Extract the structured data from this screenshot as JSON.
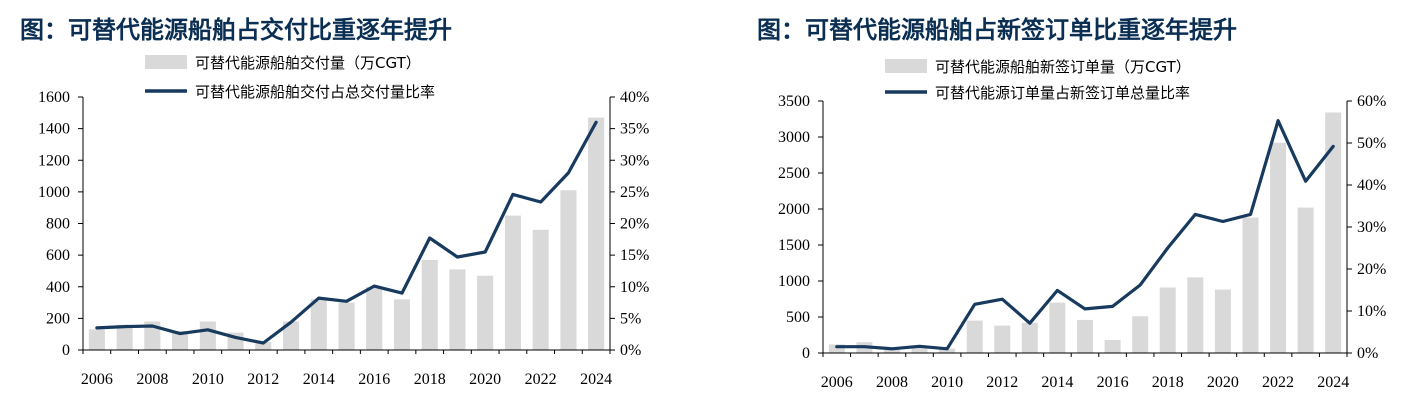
{
  "colors": {
    "bar": "#d9d9d9",
    "line": "#173a5e",
    "title": "#0b2f53"
  },
  "chart_data": [
    {
      "type": "bar+line",
      "title": "图：可替代能源船舶占交付比重逐年提升",
      "xlabel": "",
      "ylabel": "",
      "x": [
        2006,
        2007,
        2008,
        2009,
        2010,
        2011,
        2012,
        2013,
        2014,
        2015,
        2016,
        2017,
        2018,
        2019,
        2020,
        2021,
        2022,
        2023,
        2024
      ],
      "x_tick_labels": [
        "2006",
        "2008",
        "2010",
        "2012",
        "2014",
        "2016",
        "2018",
        "2020",
        "2022",
        "2024"
      ],
      "ylim": [
        0,
        1600
      ],
      "y_ticks": [
        0,
        200,
        400,
        600,
        800,
        1000,
        1200,
        1400,
        1600
      ],
      "y_tick_labels": [
        "0",
        "200",
        "400",
        "600",
        "800",
        "1000",
        "1200",
        "1400",
        "1600"
      ],
      "y2lim": [
        0,
        0.4
      ],
      "y2_ticks": [
        0,
        0.05,
        0.1,
        0.15,
        0.2,
        0.25,
        0.3,
        0.35,
        0.4
      ],
      "y2_tick_labels": [
        "0%",
        "5%",
        "10%",
        "15%",
        "20%",
        "25%",
        "30%",
        "35%",
        "40%"
      ],
      "grid": false,
      "legend_position": "top-center",
      "series": [
        {
          "name": "可替代能源船舶交付量（万CGT）",
          "type": "bar",
          "axis": "left",
          "values": [
            130,
            160,
            180,
            120,
            180,
            110,
            50,
            180,
            320,
            300,
            400,
            320,
            570,
            510,
            470,
            850,
            760,
            1010,
            1470
          ]
        },
        {
          "name": "可替代能源船舶交付占总交付量比率",
          "type": "line",
          "axis": "right",
          "values": [
            0.035,
            0.037,
            0.038,
            0.026,
            0.032,
            0.02,
            0.011,
            0.044,
            0.082,
            0.077,
            0.101,
            0.09,
            0.177,
            0.147,
            0.155,
            0.246,
            0.234,
            0.28,
            0.36
          ]
        }
      ]
    },
    {
      "type": "bar+line",
      "title": "图：可替代能源船舶占新签订单比重逐年提升",
      "xlabel": "",
      "ylabel": "",
      "x": [
        2006,
        2007,
        2008,
        2009,
        2010,
        2011,
        2012,
        2013,
        2014,
        2015,
        2016,
        2017,
        2018,
        2019,
        2020,
        2021,
        2022,
        2023,
        2024
      ],
      "x_tick_labels": [
        "2006",
        "2008",
        "2010",
        "2012",
        "2014",
        "2016",
        "2018",
        "2020",
        "2022",
        "2024"
      ],
      "ylim": [
        0,
        3500
      ],
      "y_ticks": [
        0,
        500,
        1000,
        1500,
        2000,
        2500,
        3000,
        3500
      ],
      "y_tick_labels": [
        "0",
        "500",
        "1000",
        "1500",
        "2000",
        "2500",
        "3000",
        "3500"
      ],
      "y2lim": [
        0,
        0.6
      ],
      "y2_ticks": [
        0,
        0.1,
        0.2,
        0.3,
        0.4,
        0.5,
        0.6
      ],
      "y2_tick_labels": [
        "0%",
        "10%",
        "20%",
        "30%",
        "40%",
        "50%",
        "60%"
      ],
      "grid": false,
      "legend_position": "top-center",
      "series": [
        {
          "name": "可替代能源船舶新签订单量（万CGT）",
          "type": "bar",
          "axis": "left",
          "values": [
            120,
            150,
            70,
            100,
            60,
            450,
            380,
            420,
            700,
            460,
            180,
            510,
            910,
            1050,
            880,
            1880,
            2920,
            2020,
            3340
          ]
        },
        {
          "name": "可替代能源订单量占新签订单总量比率",
          "type": "line",
          "axis": "right",
          "values": [
            0.015,
            0.015,
            0.01,
            0.016,
            0.01,
            0.116,
            0.128,
            0.071,
            0.149,
            0.105,
            0.111,
            0.162,
            0.25,
            0.33,
            0.313,
            0.33,
            0.553,
            0.409,
            0.492
          ]
        }
      ]
    }
  ]
}
